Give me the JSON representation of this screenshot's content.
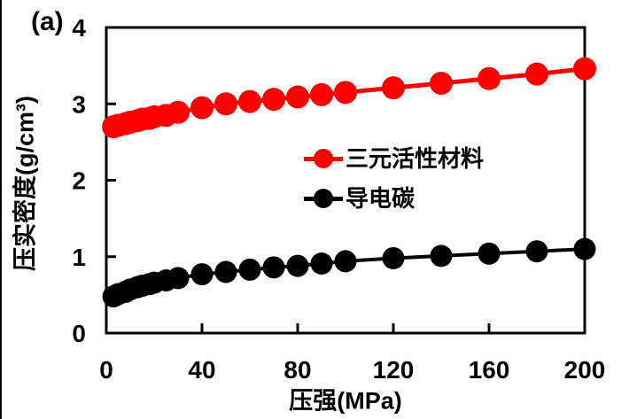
{
  "panel_label": "(a)",
  "colors": {
    "background": "#ffffff",
    "axis": "#000000",
    "series1": "#ff0000",
    "series2": "#000000",
    "frame_border": "#000000"
  },
  "chart_data": {
    "type": "line",
    "title": "",
    "xlabel": "压强(MPa)",
    "ylabel": "压实密度(g/cm³)",
    "xlim": [
      0,
      200
    ],
    "ylim": [
      0,
      4
    ],
    "xticks": [
      0,
      40,
      80,
      120,
      160,
      200
    ],
    "yticks": [
      0,
      1,
      2,
      3,
      4
    ],
    "grid": false,
    "legend_position": "inside center-left",
    "x": [
      3,
      5,
      8,
      10,
      13,
      15,
      18,
      20,
      25,
      30,
      40,
      50,
      60,
      70,
      80,
      90,
      100,
      120,
      140,
      160,
      180,
      200
    ],
    "series": [
      {
        "name": "三元活性材料",
        "color": "#ff0000",
        "marker": "circle",
        "marker_radius": 13,
        "line_width": 5,
        "values": [
          2.7,
          2.72,
          2.74,
          2.76,
          2.78,
          2.8,
          2.81,
          2.83,
          2.85,
          2.89,
          2.95,
          3.0,
          3.03,
          3.06,
          3.09,
          3.12,
          3.15,
          3.21,
          3.27,
          3.33,
          3.39,
          3.46
        ]
      },
      {
        "name": "导电碳",
        "color": "#000000",
        "marker": "circle",
        "marker_radius": 12.5,
        "line_width": 4,
        "values": [
          0.48,
          0.51,
          0.54,
          0.57,
          0.6,
          0.62,
          0.64,
          0.66,
          0.69,
          0.72,
          0.77,
          0.8,
          0.83,
          0.86,
          0.88,
          0.91,
          0.94,
          0.98,
          1.01,
          1.04,
          1.07,
          1.1
        ]
      }
    ]
  }
}
